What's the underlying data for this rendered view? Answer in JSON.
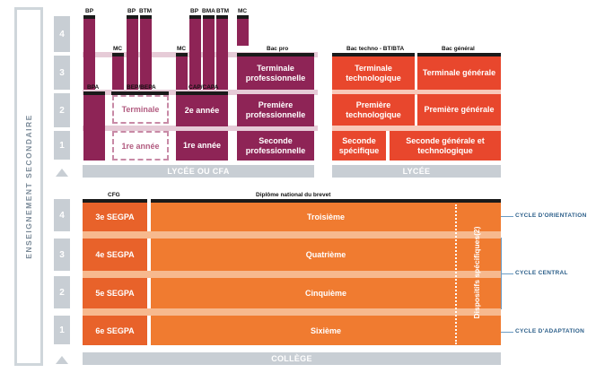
{
  "side_label": "ENSEIGNEMENT SECONDAIRE",
  "levels_top": [
    "4",
    "3",
    "2",
    "1"
  ],
  "levels_bottom": [
    "4",
    "3",
    "2",
    "1"
  ],
  "lycee_cfa": {
    "label": "LYCÉE OU CFA",
    "caps": {
      "bp1": "BP",
      "bp2": "BP",
      "btm1": "BTM",
      "bp3": "BP",
      "bma": "BMA",
      "btm2": "BTM",
      "mc1": "MC",
      "mc2": "MC",
      "mc3": "MC",
      "bpa": "BPA",
      "bep_bepa": "BEP/BEPA",
      "cap_capa": "CAP/CAPA",
      "bac_pro": "Bac pro"
    },
    "dashed": {
      "terminale": "Terminale",
      "premiere_annee": "1re année"
    },
    "cap_years": {
      "deuxieme": "2e année",
      "premiere": "1re année"
    },
    "bac_pro_years": {
      "terminale": "Terminale professionnelle",
      "premiere": "Première professionnelle",
      "seconde": "Seconde professionnelle"
    }
  },
  "lycee": {
    "label": "LYCÉE",
    "caps": {
      "techno": "Bac techno - BT/BTA",
      "general": "Bac général"
    },
    "techno": {
      "terminale": "Terminale technologique",
      "premiere": "Première technologique",
      "seconde": "Seconde spécifique"
    },
    "general": {
      "terminale": "Terminale générale",
      "premiere": "Première générale",
      "seconde": "Seconde générale et technologique"
    }
  },
  "college": {
    "label": "COLLÈGE",
    "caps": {
      "cfg": "CFG",
      "brevet": "Diplôme national du brevet"
    },
    "segpa": [
      "3e SEGPA",
      "4e SEGPA",
      "5e SEGPA",
      "6e SEGPA"
    ],
    "classes": [
      "Troisième",
      "Quatrième",
      "Cinquième",
      "Sixième"
    ],
    "dispositifs": "Dispositifs spécifiques(2)",
    "cycles": {
      "orientation": "CYCLE D'ORIENTATION",
      "central": "CYCLE CENTRAL",
      "adaptation": "CYCLE D'ADAPTATION"
    }
  }
}
